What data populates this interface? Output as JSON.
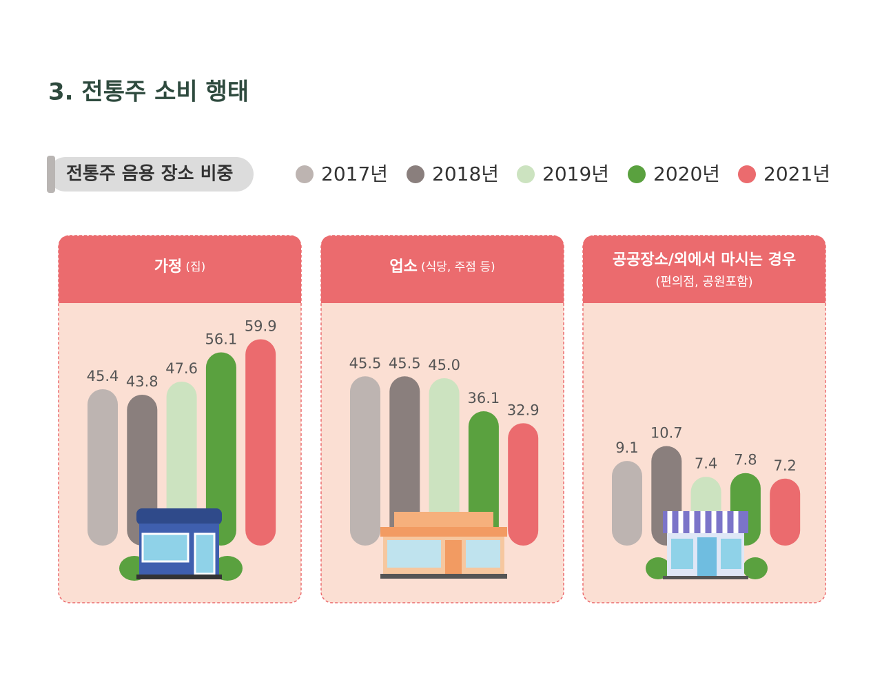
{
  "header": {
    "title": "3. 전통주 소비 행태",
    "subtitle": "전통주 음용 장소 비중"
  },
  "chart_data": {
    "type": "bar",
    "categories": [
      "가정",
      "업소",
      "공공장소/외에서 마시는 경우"
    ],
    "category_notes": [
      "(집)",
      "(식당, 주점 등)",
      "(편의점, 공원포함)"
    ],
    "series": [
      {
        "name": "2017년",
        "color": "#bdb4b1",
        "values": [
          45.4,
          45.5,
          9.1
        ]
      },
      {
        "name": "2018년",
        "color": "#8a7f7d",
        "values": [
          43.8,
          45.5,
          10.7
        ]
      },
      {
        "name": "2019년",
        "color": "#cce3c0",
        "values": [
          47.6,
          45.0,
          7.4
        ],
        "value_labels": [
          "47.6",
          "45.0",
          "7.4"
        ]
      },
      {
        "name": "2020년",
        "color": "#5aa13f",
        "values": [
          56.1,
          36.1,
          7.8
        ]
      },
      {
        "name": "2021년",
        "color": "#eb6b6e",
        "values": [
          59.9,
          32.9,
          7.2
        ]
      }
    ]
  }
}
